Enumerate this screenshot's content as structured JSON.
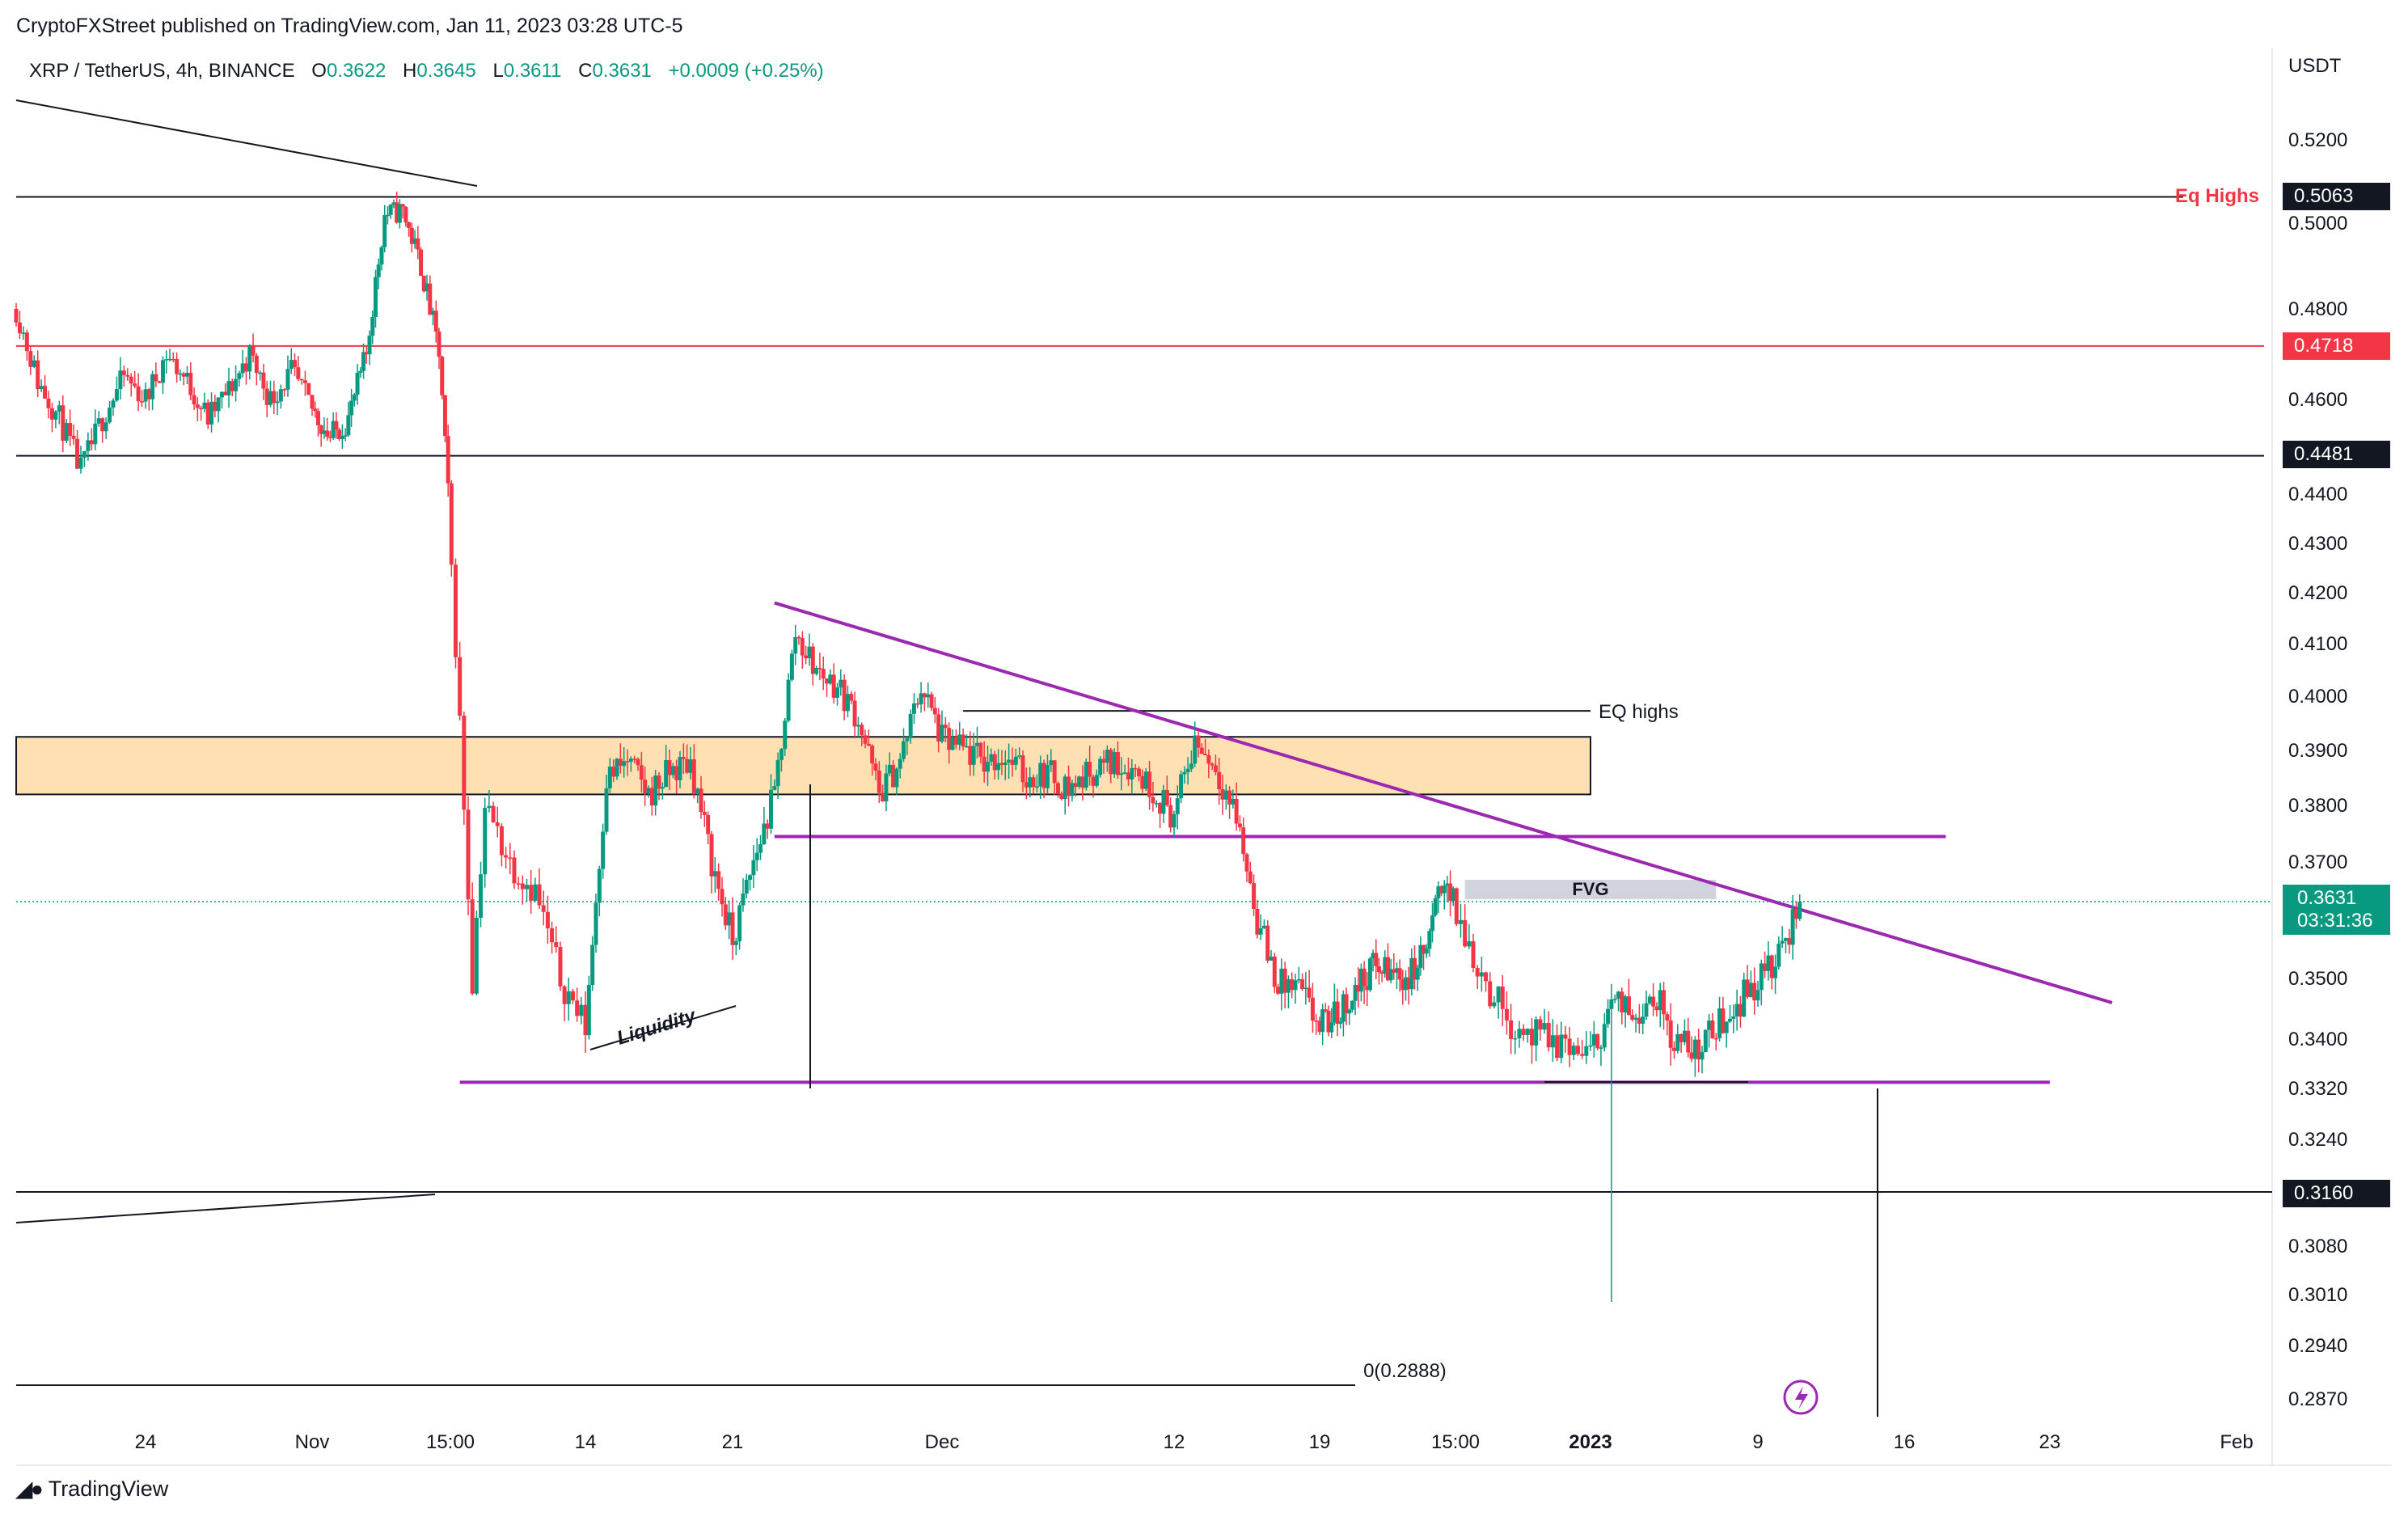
{
  "publish_line": "CryptoFXStreet published on TradingView.com, Jan 11, 2023 03:28 UTC-5",
  "legend": {
    "symbol": "XRP / TetherUS, 4h, BINANCE",
    "o_label": "O",
    "o": "0.3622",
    "h_label": "H",
    "h": "0.3645",
    "l_label": "L",
    "l": "0.3611",
    "c_label": "C",
    "c": "0.3631",
    "change": "+0.0009 (+0.25%)"
  },
  "brand": "TradingView",
  "colors": {
    "up": "#089981",
    "down": "#f23645",
    "purple": "#9c27b0",
    "zone_fill": "#ffe0b2",
    "fvg_fill": "#d1d4dc",
    "red_line": "#f23645",
    "black": "#131722"
  },
  "annotations": {
    "eq_highs_upper": "EQ highs",
    "fvg": "FVG",
    "liquidity": "Liquidity",
    "fib_level": "0(0.2888)",
    "eq_highs_red": "Eq Highs"
  },
  "badges": {
    "eq_level": "0.5063",
    "red_level": "0.4718",
    "level_4481": "0.4481",
    "level_3160": "0.3160",
    "current_price": "0.3631",
    "countdown": "03:31:36"
  },
  "chart_data": {
    "type": "candlestick",
    "symbol": "XRP/USDT",
    "interval": "4h",
    "exchange": "BINANCE",
    "price_axis_unit": "USDT",
    "y_ticks": [
      0.52,
      0.5,
      0.48,
      0.46,
      0.44,
      0.43,
      0.42,
      0.41,
      0.4,
      0.39,
      0.38,
      0.37,
      0.36,
      0.35,
      0.34,
      0.332,
      0.324,
      0.316,
      0.308,
      0.301,
      0.294,
      0.287
    ],
    "y_tick_labels": [
      "0.5200",
      "0.5000",
      "0.4800",
      "0.4600",
      "0.4400",
      "0.4300",
      "0.4200",
      "0.4100",
      "0.4000",
      "0.3900",
      "0.3800",
      "0.3700",
      "0.3600",
      "0.3500",
      "0.3400",
      "0.3320",
      "0.3240",
      "0.3160",
      "0.3080",
      "0.3010",
      "0.2940",
      "0.2870"
    ],
    "x_ticks": [
      {
        "date": "2022-10-24",
        "label": "24",
        "bold": false
      },
      {
        "date": "2022-11-01",
        "label": "Nov",
        "bold": false
      },
      {
        "date": "2022-11-08T15:00",
        "label": "15:00",
        "bold": false
      },
      {
        "date": "2022-11-14",
        "label": "14",
        "bold": false
      },
      {
        "date": "2022-11-21",
        "label": "21",
        "bold": false
      },
      {
        "date": "2022-12-01",
        "label": "Dec",
        "bold": false
      },
      {
        "date": "2022-12-12",
        "label": "12",
        "bold": false
      },
      {
        "date": "2022-12-19",
        "label": "19",
        "bold": false
      },
      {
        "date": "2022-12-26T15:00",
        "label": "15:00",
        "bold": false
      },
      {
        "date": "2023-01-01",
        "label": "2023",
        "bold": true
      },
      {
        "date": "2023-01-09",
        "label": "9",
        "bold": false
      },
      {
        "date": "2023-01-16",
        "label": "16",
        "bold": false
      },
      {
        "date": "2023-01-23",
        "label": "23",
        "bold": false
      },
      {
        "date": "2023-02-01",
        "label": "Feb",
        "bold": false
      }
    ],
    "close_path": [
      [
        "2022-10-18",
        0.48
      ],
      [
        "2022-10-19",
        0.464
      ],
      [
        "2022-10-20",
        0.456
      ],
      [
        "2022-10-21",
        0.445
      ],
      [
        "2022-10-22",
        0.456
      ],
      [
        "2022-10-23",
        0.465
      ],
      [
        "2022-10-24",
        0.46
      ],
      [
        "2022-10-25",
        0.47
      ],
      [
        "2022-10-26",
        0.464
      ],
      [
        "2022-10-27",
        0.456
      ],
      [
        "2022-10-28",
        0.462
      ],
      [
        "2022-10-29",
        0.47
      ],
      [
        "2022-10-30",
        0.46
      ],
      [
        "2022-10-31",
        0.466
      ],
      [
        "2022-11-01",
        0.458
      ],
      [
        "2022-11-02",
        0.452
      ],
      [
        "2022-11-03",
        0.456
      ],
      [
        "2022-11-04",
        0.47
      ],
      [
        "2022-11-05",
        0.502
      ],
      [
        "2022-11-06",
        0.503
      ],
      [
        "2022-11-07",
        0.49
      ],
      [
        "2022-11-08",
        0.47
      ],
      [
        "2022-11-08T12:00",
        0.44
      ],
      [
        "2022-11-09",
        0.395
      ],
      [
        "2022-11-09T12:00",
        0.35
      ],
      [
        "2022-11-10",
        0.38
      ],
      [
        "2022-11-11",
        0.37
      ],
      [
        "2022-11-12",
        0.365
      ],
      [
        "2022-11-13",
        0.35
      ],
      [
        "2022-11-14",
        0.342
      ],
      [
        "2022-11-15",
        0.385
      ],
      [
        "2022-11-16",
        0.388
      ],
      [
        "2022-11-17",
        0.382
      ],
      [
        "2022-11-18",
        0.386
      ],
      [
        "2022-11-19",
        0.388
      ],
      [
        "2022-11-20",
        0.37
      ],
      [
        "2022-11-21",
        0.356
      ],
      [
        "2022-11-22",
        0.37
      ],
      [
        "2022-11-23",
        0.382
      ],
      [
        "2022-11-24",
        0.412
      ],
      [
        "2022-11-25",
        0.405
      ],
      [
        "2022-11-26",
        0.402
      ],
      [
        "2022-11-27",
        0.396
      ],
      [
        "2022-11-28",
        0.382
      ],
      [
        "2022-11-29",
        0.388
      ],
      [
        "2022-11-30",
        0.402
      ],
      [
        "2022-12-01",
        0.392
      ],
      [
        "2022-12-02",
        0.39
      ],
      [
        "2022-12-03",
        0.388
      ],
      [
        "2022-12-04",
        0.389
      ],
      [
        "2022-12-05",
        0.385
      ],
      [
        "2022-12-06",
        0.386
      ],
      [
        "2022-12-07",
        0.383
      ],
      [
        "2022-12-08",
        0.386
      ],
      [
        "2022-12-09",
        0.388
      ],
      [
        "2022-12-10",
        0.387
      ],
      [
        "2022-12-11",
        0.383
      ],
      [
        "2022-12-12",
        0.378
      ],
      [
        "2022-12-13",
        0.392
      ],
      [
        "2022-12-14",
        0.387
      ],
      [
        "2022-12-15",
        0.378
      ],
      [
        "2022-12-16",
        0.36
      ],
      [
        "2022-12-17",
        0.349
      ],
      [
        "2022-12-18",
        0.348
      ],
      [
        "2022-12-19",
        0.342
      ],
      [
        "2022-12-20",
        0.344
      ],
      [
        "2022-12-21",
        0.348
      ],
      [
        "2022-12-22",
        0.352
      ],
      [
        "2022-12-23",
        0.351
      ],
      [
        "2022-12-24",
        0.35
      ],
      [
        "2022-12-25",
        0.355
      ],
      [
        "2022-12-26",
        0.368
      ],
      [
        "2022-12-27",
        0.357
      ],
      [
        "2022-12-28",
        0.348
      ],
      [
        "2022-12-29",
        0.342
      ],
      [
        "2022-12-30",
        0.34
      ],
      [
        "2022-12-31",
        0.339
      ],
      [
        "2023-01-01",
        0.337
      ],
      [
        "2023-01-02",
        0.346
      ],
      [
        "2023-01-03",
        0.344
      ],
      [
        "2023-01-04",
        0.348
      ],
      [
        "2023-01-05",
        0.34
      ],
      [
        "2023-01-06",
        0.338
      ],
      [
        "2023-01-07",
        0.342
      ],
      [
        "2023-01-08",
        0.346
      ],
      [
        "2023-01-09",
        0.35
      ],
      [
        "2023-01-10",
        0.353
      ],
      [
        "2023-01-11",
        0.3631
      ]
    ],
    "horizontal_levels": [
      {
        "price": 0.5063,
        "color": "black",
        "label": "Eq Highs"
      },
      {
        "price": 0.4718,
        "color": "red"
      },
      {
        "price": 0.4481,
        "color": "black"
      },
      {
        "price": 0.3973,
        "color": "black",
        "label": "EQ highs",
        "from": "2022-12-02",
        "to": "2023-01-01"
      },
      {
        "price": 0.3745,
        "color": "purple",
        "from": "2022-11-23",
        "to": "2023-01-18"
      },
      {
        "price": 0.333,
        "color": "purple",
        "from": "2022-11-09",
        "to": "2023-01-23"
      },
      {
        "price": 0.316,
        "color": "black"
      },
      {
        "price": 0.2888,
        "color": "black",
        "label": "0(0.2888)",
        "to": "2022-12-21"
      }
    ],
    "trendline_descending": {
      "from": [
        "2022-11-23",
        0.418
      ],
      "to": [
        "2023-01-26",
        0.346
      ],
      "color": "purple"
    },
    "supply_zone": {
      "from_price": 0.3925,
      "to_price": 0.382,
      "end": "2023-01-01"
    },
    "fvg_zone": {
      "from_price": 0.3655,
      "to_price": 0.364,
      "start": "2022-12-27",
      "end": "2023-01-07",
      "label": "FVG"
    },
    "last_price": 0.3631,
    "min_wick": {
      "date": "2023-01-02",
      "price": 0.3
    }
  }
}
